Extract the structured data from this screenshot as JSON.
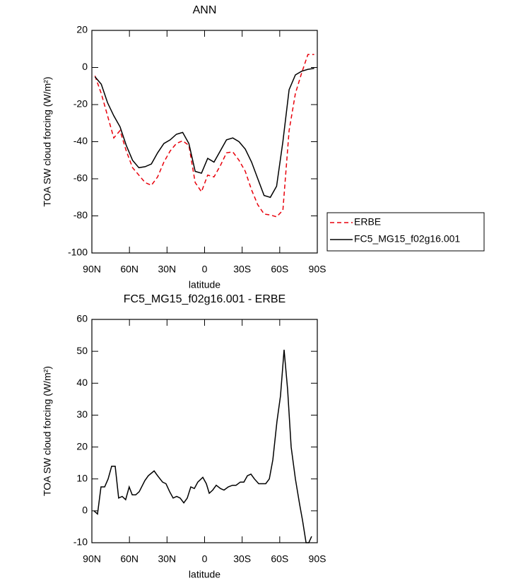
{
  "chart_data": [
    {
      "type": "line",
      "title": "ANN",
      "xlabel": "latitude",
      "ylabel": "TOA SW cloud forcing (W/m²)",
      "x": [
        87.5,
        82.5,
        77.5,
        72.5,
        67.5,
        62.5,
        57.5,
        52.5,
        47.5,
        42.5,
        37.5,
        32.5,
        27.5,
        22.5,
        17.5,
        12.5,
        7.5,
        2.5,
        -2.5,
        -7.5,
        -12.5,
        -17.5,
        -22.5,
        -27.5,
        -32.5,
        -37.5,
        -42.5,
        -47.5,
        -52.5,
        -57.5,
        -62.5,
        -67.5,
        -72.5,
        -77.5,
        -82.5,
        -87.5
      ],
      "series": [
        {
          "name": "ERBE",
          "color": "#e8000b",
          "line_style": "dashed",
          "values": [
            -4.5,
            -14,
            -26,
            -38,
            -34,
            -45,
            -54,
            -58,
            -62,
            -63.5,
            -59,
            -51,
            -45,
            -41,
            -39.5,
            -42,
            -62,
            -67,
            -58,
            -59,
            -53,
            -46,
            -45.5,
            -50,
            -56,
            -66,
            -74,
            -79,
            -79.5,
            -80.5,
            -77,
            -34,
            -14,
            -3,
            7,
            7
          ]
        },
        {
          "name": "FC5_MG15_f02g16.001",
          "color": "#000000",
          "line_style": "solid",
          "values": [
            -5,
            -9,
            -19,
            -26,
            -32,
            -42,
            -50,
            -54,
            -53.5,
            -52,
            -46,
            -41,
            -39,
            -36,
            -35,
            -41,
            -56,
            -57,
            -49,
            -51,
            -45,
            -39,
            -38,
            -40,
            -44,
            -51,
            -60,
            -69,
            -70,
            -64,
            -40,
            -12,
            -4,
            -2,
            -1,
            -0.5
          ]
        }
      ],
      "xlim": [
        90,
        -90
      ],
      "xticks": [
        {
          "value": 90,
          "label": "90N"
        },
        {
          "value": 60,
          "label": "60N"
        },
        {
          "value": 30,
          "label": "30N"
        },
        0,
        {
          "value": -30,
          "label": "30S"
        },
        {
          "value": -60,
          "label": "60S"
        },
        {
          "value": -90,
          "label": "90S"
        }
      ],
      "ylim": [
        -100,
        20
      ],
      "yticks": [
        -100,
        -80,
        -60,
        -40,
        -20,
        0,
        20
      ],
      "legend": "right"
    },
    {
      "type": "line",
      "title": "FC5_MG15_f02g16.001 - ERBE",
      "xlabel": "latitude",
      "ylabel": "TOA SW cloud forcing (W/m²)",
      "x": [
        88.3,
        85.5,
        82.7,
        79.8,
        77.0,
        74.2,
        71.4,
        68.6,
        65.8,
        63.0,
        60.2,
        57.8,
        55.0,
        52.2,
        47.7,
        44.9,
        40.3,
        37.5,
        33.6,
        30.8,
        27.9,
        25.1,
        22.3,
        19.5,
        16.6,
        13.8,
        11.0,
        8.2,
        5.4,
        1.4,
        -1.4,
        -3.7,
        -6.5,
        -9.3,
        -12.7,
        -15.5,
        -18.9,
        -22.3,
        -25.1,
        -28.5,
        -31.4,
        -34.2,
        -37.0,
        -39.8,
        -43.2,
        -46.0,
        -48.8,
        -51.7,
        -54.5,
        -57.8,
        -60.6,
        -63.5,
        -66.3,
        -69.1,
        -72.5,
        -75.9,
        -78.2,
        -81.0,
        -83.2,
        -85.5
      ],
      "values": [
        0,
        -1,
        7.5,
        7.5,
        10,
        14,
        14,
        4,
        4.5,
        3.5,
        7.5,
        5,
        5,
        6,
        9.5,
        11,
        12.5,
        11,
        9,
        8.5,
        6,
        4,
        4.5,
        4,
        2.5,
        4,
        7.5,
        7,
        9,
        10.5,
        8.5,
        5.5,
        6.5,
        8,
        7,
        6.5,
        7.5,
        8,
        8,
        9,
        9,
        11,
        11.5,
        10,
        8.5,
        8.5,
        8.5,
        10,
        16,
        28,
        36,
        50.5,
        38,
        20,
        10,
        2,
        -3,
        -10,
        -10,
        -8
      ],
      "color": "#000000",
      "xlim": [
        90,
        -90
      ],
      "xticks": [
        {
          "value": 90,
          "label": "90N"
        },
        {
          "value": 60,
          "label": "60N"
        },
        {
          "value": 30,
          "label": "30N"
        },
        0,
        {
          "value": -30,
          "label": "30S"
        },
        {
          "value": -60,
          "label": "60S"
        },
        {
          "value": -90,
          "label": "90S"
        }
      ],
      "ylim": [
        -10,
        60
      ],
      "yticks": [
        -10,
        0,
        10,
        20,
        30,
        40,
        50,
        60
      ]
    }
  ]
}
